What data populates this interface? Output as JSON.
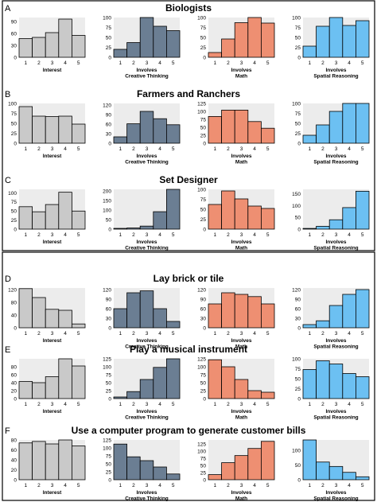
{
  "figure": {
    "ylabel": "",
    "xlabel_rows": [
      [
        "Interest"
      ],
      [
        "Involves",
        "Creative Thinking"
      ],
      [
        "Involves",
        "Math"
      ],
      [
        "Involves",
        "Spatial Reasoning"
      ]
    ],
    "x_ticks": [
      "1",
      "2",
      "3",
      "4",
      "5"
    ],
    "colors": [
      "#c9c9c9",
      "#6b7e93",
      "#ee8f72",
      "#6cc0f2"
    ],
    "plot_background": "#ececec"
  },
  "chart_data": [
    {
      "type": "bar",
      "panel": "A",
      "title": "Biologists",
      "categories": [
        "1",
        "2",
        "3",
        "4",
        "5"
      ],
      "series": [
        {
          "values": [
            47,
            50,
            62,
            96,
            55
          ],
          "ylim": [
            0,
            100
          ],
          "yticks": [
            0,
            30,
            60,
            90
          ]
        },
        {
          "values": [
            20,
            37,
            100,
            78,
            67
          ],
          "ylim": [
            0,
            100
          ],
          "yticks": [
            0,
            25,
            50,
            75,
            100
          ]
        },
        {
          "values": [
            12,
            46,
            87,
            100,
            86
          ],
          "ylim": [
            0,
            100
          ],
          "yticks": [
            0,
            25,
            50,
            75,
            100
          ]
        },
        {
          "values": [
            28,
            78,
            100,
            80,
            92
          ],
          "ylim": [
            0,
            100
          ],
          "yticks": [
            0,
            25,
            50,
            75,
            100
          ]
        }
      ]
    },
    {
      "type": "bar",
      "panel": "B",
      "title": "Farmers and Ranchers",
      "categories": [
        "1",
        "2",
        "3",
        "4",
        "5"
      ],
      "series": [
        {
          "values": [
            92,
            68,
            67,
            68,
            48
          ],
          "ylim": [
            0,
            100
          ],
          "yticks": [
            0,
            25,
            50,
            75,
            100
          ]
        },
        {
          "values": [
            20,
            61,
            100,
            77,
            58
          ],
          "ylim": [
            0,
            125
          ],
          "yticks": [
            0,
            30,
            60,
            90,
            120
          ]
        },
        {
          "values": [
            84,
            104,
            104,
            68,
            47
          ],
          "ylim": [
            0,
            125
          ],
          "yticks": [
            0,
            25,
            50,
            75,
            100,
            125
          ]
        },
        {
          "values": [
            20,
            46,
            80,
            100,
            100
          ],
          "ylim": [
            0,
            100
          ],
          "yticks": [
            0,
            25,
            50,
            75,
            100
          ]
        }
      ]
    },
    {
      "type": "bar",
      "panel": "C",
      "title": "Set Designer",
      "categories": [
        "1",
        "2",
        "3",
        "4",
        "5"
      ],
      "series": [
        {
          "values": [
            62,
            48,
            68,
            102,
            50
          ],
          "ylim": [
            0,
            110
          ],
          "yticks": [
            0,
            25,
            50,
            75,
            100
          ]
        },
        {
          "values": [
            4,
            6,
            16,
            92,
            210
          ],
          "ylim": [
            0,
            210
          ],
          "yticks": [
            0,
            50,
            100,
            150,
            200
          ]
        },
        {
          "values": [
            62,
            96,
            76,
            58,
            52
          ],
          "ylim": [
            0,
            100
          ],
          "yticks": [
            0,
            25,
            50,
            75,
            100
          ]
        },
        {
          "values": [
            3,
            12,
            40,
            92,
            162
          ],
          "ylim": [
            0,
            170
          ],
          "yticks": [
            0,
            50,
            100,
            150
          ]
        }
      ]
    },
    {
      "type": "bar",
      "panel": "D",
      "title": "Lay brick or tile",
      "categories": [
        "1",
        "2",
        "3",
        "4",
        "5"
      ],
      "series": [
        {
          "values": [
            123,
            95,
            58,
            55,
            12
          ],
          "ylim": [
            0,
            125
          ],
          "yticks": [
            0,
            40,
            80,
            120
          ]
        },
        {
          "values": [
            60,
            110,
            116,
            60,
            20
          ],
          "ylim": [
            0,
            125
          ],
          "yticks": [
            0,
            30,
            60,
            90,
            120
          ]
        },
        {
          "values": [
            75,
            110,
            105,
            98,
            75
          ],
          "ylim": [
            0,
            125
          ],
          "yticks": [
            0,
            30,
            60,
            90,
            120
          ]
        },
        {
          "values": [
            10,
            22,
            70,
            105,
            120
          ],
          "ylim": [
            0,
            125
          ],
          "yticks": [
            0,
            30,
            60,
            90,
            120
          ]
        }
      ]
    },
    {
      "type": "bar",
      "panel": "E",
      "title": "Play a musical instrument",
      "categories": [
        "1",
        "2",
        "3",
        "4",
        "5"
      ],
      "series": [
        {
          "values": [
            43,
            40,
            55,
            102,
            82
          ],
          "ylim": [
            0,
            100
          ],
          "yticks": [
            0,
            20,
            40,
            60,
            80
          ]
        },
        {
          "values": [
            5,
            22,
            60,
            98,
            125
          ],
          "ylim": [
            0,
            125
          ],
          "yticks": [
            0,
            25,
            50,
            75,
            100,
            125
          ]
        },
        {
          "values": [
            122,
            100,
            60,
            25,
            20
          ],
          "ylim": [
            0,
            125
          ],
          "yticks": [
            0,
            25,
            50,
            75,
            100,
            125
          ]
        },
        {
          "values": [
            73,
            95,
            87,
            63,
            55
          ],
          "ylim": [
            0,
            100
          ],
          "yticks": [
            0,
            25,
            50,
            75,
            100
          ]
        }
      ]
    },
    {
      "type": "bar",
      "panel": "F",
      "title": "Use a computer program to generate customer bills",
      "categories": [
        "1",
        "2",
        "3",
        "4",
        "5"
      ],
      "series": [
        {
          "values": [
            74,
            77,
            72,
            82,
            68
          ],
          "ylim": [
            0,
            80
          ],
          "yticks": [
            0,
            20,
            40,
            60,
            80
          ]
        },
        {
          "values": [
            112,
            72,
            60,
            40,
            18
          ],
          "ylim": [
            0,
            125
          ],
          "yticks": [
            0,
            25,
            50,
            75,
            100,
            125
          ]
        },
        {
          "values": [
            18,
            60,
            85,
            110,
            135
          ],
          "ylim": [
            0,
            140
          ],
          "yticks": [
            0,
            25,
            50,
            75,
            100,
            125
          ]
        },
        {
          "values": [
            135,
            60,
            45,
            25,
            10
          ],
          "ylim": [
            0,
            135
          ],
          "yticks": [
            0,
            50,
            100
          ]
        }
      ]
    }
  ]
}
